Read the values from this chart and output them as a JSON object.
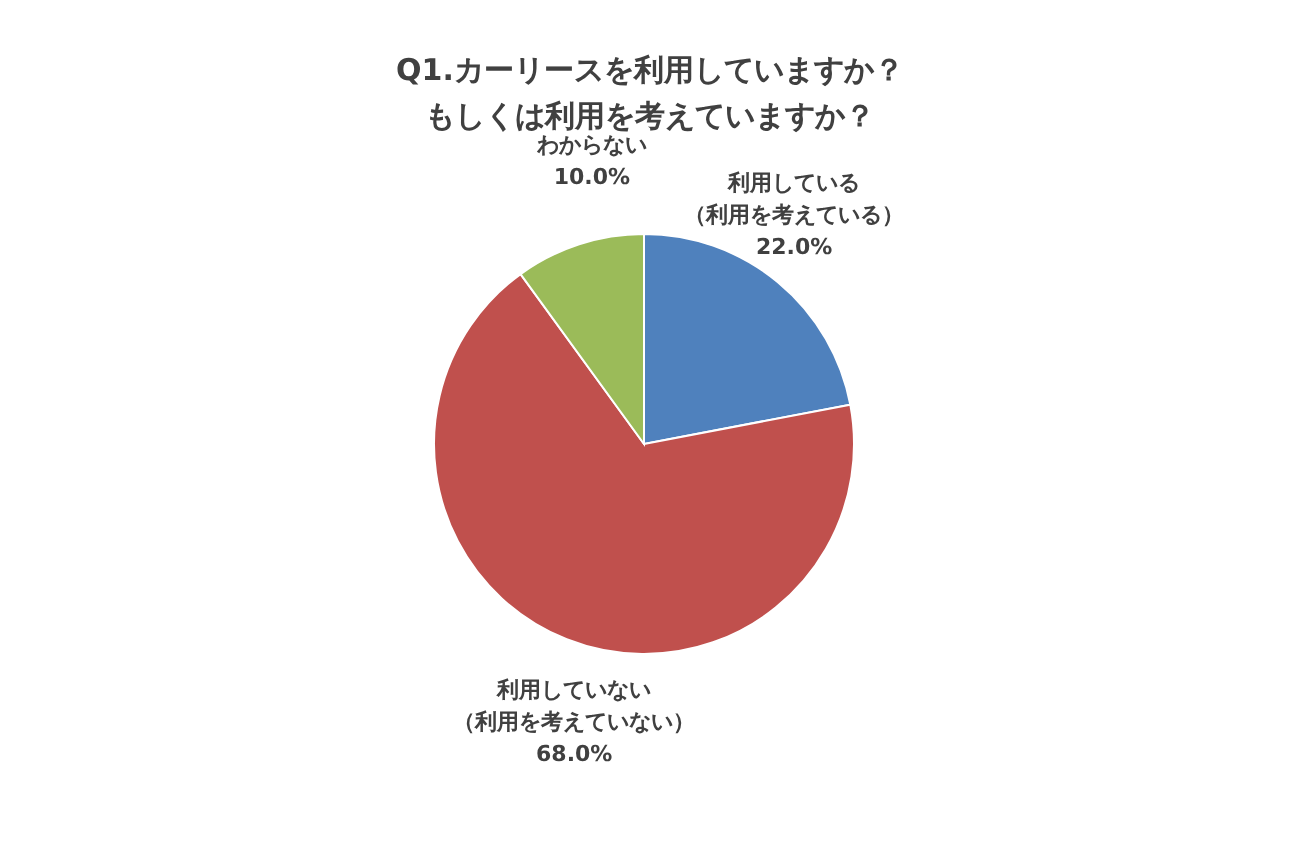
{
  "chart_data": {
    "type": "pie",
    "title": "Q1.カーリースを利用していますか？もしくは利用を考えていますか？",
    "categories": [
      "利用している（利用を考えている）",
      "利用していない（利用を考えていない）",
      "わからない"
    ],
    "values": [
      22.0,
      68.0,
      10.0
    ],
    "colors": [
      "#4f81bd",
      "#c0504d",
      "#9bbb59"
    ],
    "value_labels": [
      "22.0%",
      "68.0%",
      "10.0%"
    ],
    "legend": false
  }
}
